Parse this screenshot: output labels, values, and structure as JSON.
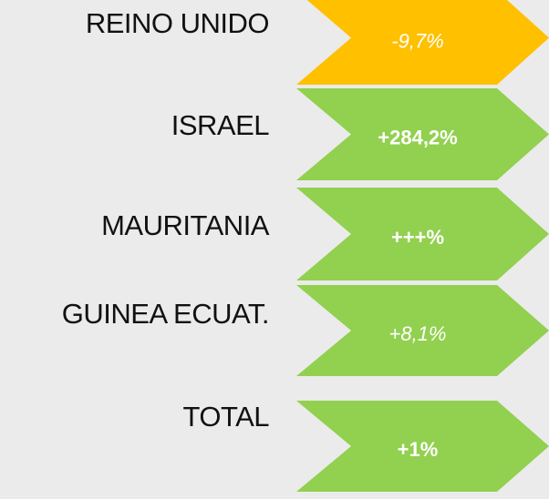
{
  "rows": [
    {
      "label": "REINO UNIDO",
      "value": "-9,7%",
      "color": "#ffc000",
      "italic": true
    },
    {
      "label": "ISRAEL",
      "value": "+284,2%",
      "color": "#92d050",
      "italic": false
    },
    {
      "label": "MAURITANIA",
      "value": "+++%",
      "color": "#92d050",
      "italic": false
    },
    {
      "label": "GUINEA ECUAT.",
      "value": "+8,1%",
      "color": "#92d050",
      "italic": true
    },
    {
      "label": "TOTAL",
      "value": "+1%",
      "color": "#92d050",
      "italic": false
    }
  ]
}
